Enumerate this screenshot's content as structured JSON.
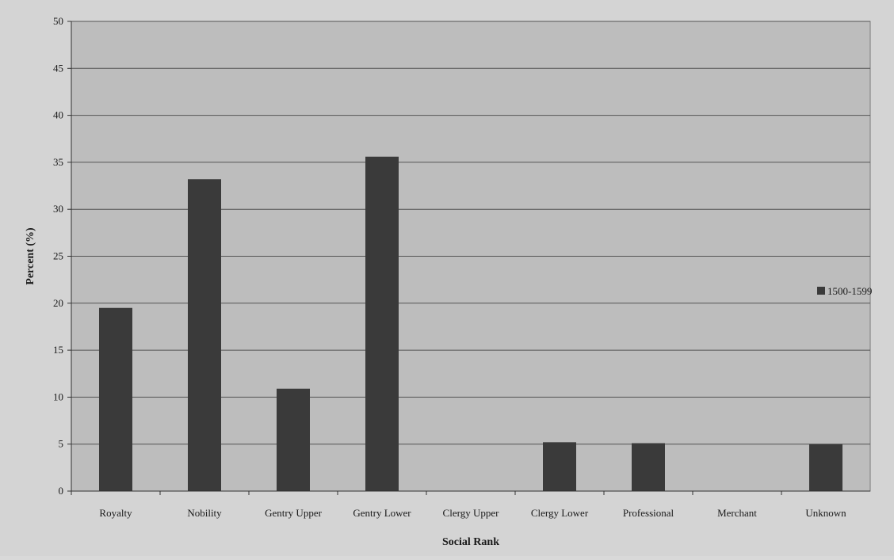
{
  "chart_data": {
    "type": "bar",
    "title": "",
    "xlabel": "Social Rank",
    "ylabel": "Percent (%)",
    "ylim": [
      0,
      50
    ],
    "yticks": [
      0,
      5,
      10,
      15,
      20,
      25,
      30,
      35,
      40,
      45,
      50
    ],
    "categories": [
      "Royalty",
      "Nobility",
      "Gentry Upper",
      "Gentry Lower",
      "Clergy Upper",
      "Clergy Lower",
      "Professional",
      "Merchant",
      "Unknown"
    ],
    "series": [
      {
        "name": "1500-1599",
        "values": [
          19.5,
          33.2,
          10.9,
          35.6,
          0,
          5.2,
          5.1,
          0,
          5.0
        ]
      }
    ],
    "grid": true,
    "legend_position": "right",
    "colors": {
      "bar": "#3a3a3a",
      "plot_background": "#bdbdbd",
      "gridline": "#555555",
      "outer_background": "#d4d4d4"
    }
  }
}
